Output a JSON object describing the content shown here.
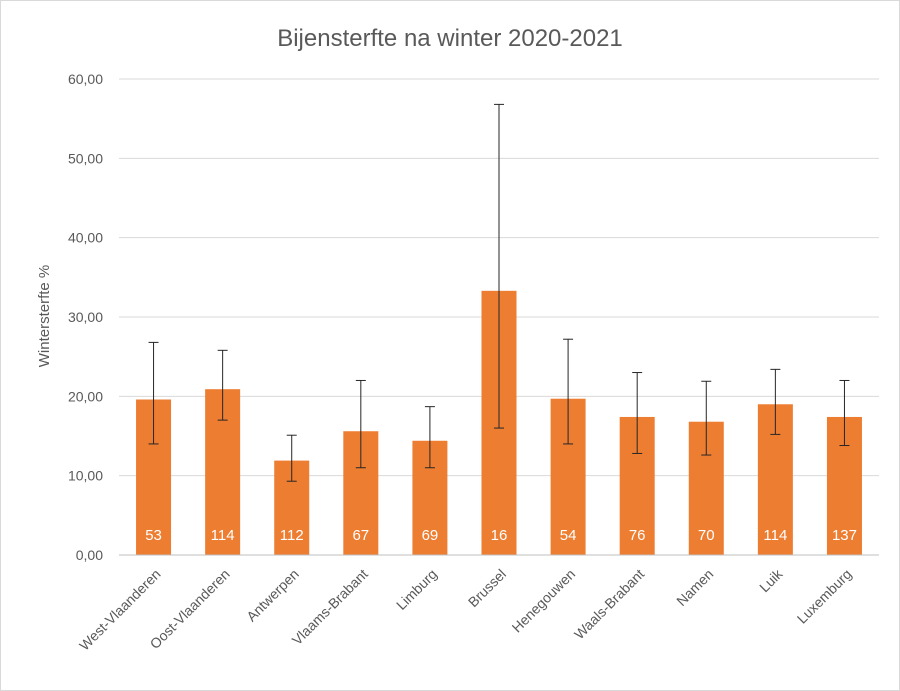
{
  "chart_data": {
    "type": "bar",
    "title": "Bijensterfte na winter 2020-2021",
    "xlabel": "",
    "ylabel": "Wintersterfte %",
    "ylim": [
      0,
      60
    ],
    "yticks": [
      "0,00",
      "10,00",
      "20,00",
      "30,00",
      "40,00",
      "50,00",
      "60,00"
    ],
    "grid": true,
    "legend": "none",
    "bar_color": "#ED7D31",
    "categories": [
      "West-Vlaanderen",
      "Oost-Vlaanderen",
      "Antwerpen",
      "Vlaams-Brabant",
      "Limburg",
      "Brussel",
      "Henegouwen",
      "Waals-Brabant",
      "Namen",
      "Luik",
      "Luxemburg"
    ],
    "values": [
      19.6,
      20.9,
      11.9,
      15.6,
      14.4,
      33.3,
      19.7,
      17.4,
      16.8,
      19.0,
      17.4
    ],
    "error_low": [
      14.0,
      17.0,
      9.3,
      11.0,
      11.0,
      16.0,
      14.0,
      12.8,
      12.6,
      15.2,
      13.8
    ],
    "error_high": [
      26.8,
      25.8,
      15.1,
      22.0,
      18.7,
      56.8,
      27.2,
      23.0,
      21.9,
      23.4,
      22.0
    ],
    "data_labels": [
      "53",
      "114",
      "112",
      "67",
      "69",
      "16",
      "54",
      "76",
      "70",
      "114",
      "137"
    ]
  }
}
